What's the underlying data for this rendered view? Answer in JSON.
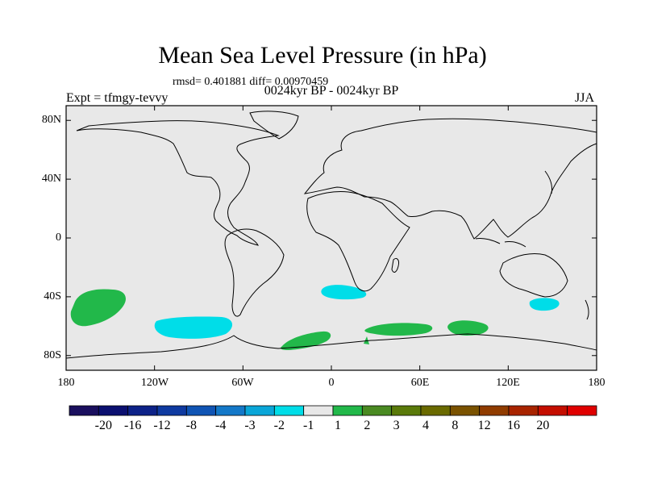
{
  "title": "Mean Sea Level Pressure (in hPa)",
  "stats": "rmsd= 0.401881 diff= 0.00970459",
  "period": "0024kyr BP - 0024kyr BP",
  "experiment": "Expt = tfmgy-tevvy",
  "season": "JJA",
  "map": {
    "lon_range": [
      -180,
      180
    ],
    "lat_range": [
      -90,
      90
    ],
    "y_ticks": [
      "80N",
      "40N",
      "0",
      "40S",
      "80S"
    ],
    "x_ticks": [
      "180",
      "120W",
      "60W",
      "0",
      "60E",
      "120E",
      "180"
    ],
    "background_color": "#e8e8e8",
    "anomaly_regions": [
      {
        "name": "south-pacific-positive",
        "value_class": "1 to 2",
        "color": "#22b84a"
      },
      {
        "name": "southeast-pacific-negative",
        "value_class": "-2 to -1",
        "color": "#00dde8"
      },
      {
        "name": "south-atlantic-negative",
        "value_class": "-2 to -1",
        "color": "#00dde8"
      },
      {
        "name": "southern-ocean-positive-1",
        "value_class": "1 to 2",
        "color": "#22b84a"
      },
      {
        "name": "southern-ocean-positive-2",
        "value_class": "1 to 2",
        "color": "#22b84a"
      },
      {
        "name": "southern-ocean-positive-3",
        "value_class": "1 to 2",
        "color": "#22b84a"
      },
      {
        "name": "tasman-negative",
        "value_class": "-2 to -1",
        "color": "#00dde8"
      }
    ]
  },
  "colorbar": {
    "colors": [
      "#1a0f5e",
      "#0b1070",
      "#0d2288",
      "#0f3aa0",
      "#1054b4",
      "#1478c8",
      "#0aa6d8",
      "#00dde8",
      "#e8e8e8",
      "#22b84a",
      "#4a8a22",
      "#5a7a0a",
      "#6a6a00",
      "#7a5200",
      "#903c00",
      "#a82400",
      "#c40e00",
      "#e00000"
    ],
    "labels": [
      "-20",
      "-16",
      "-12",
      "-8",
      "-4",
      "-3",
      "-2",
      "-1",
      "1",
      "2",
      "3",
      "4",
      "8",
      "12",
      "16",
      "20"
    ]
  }
}
